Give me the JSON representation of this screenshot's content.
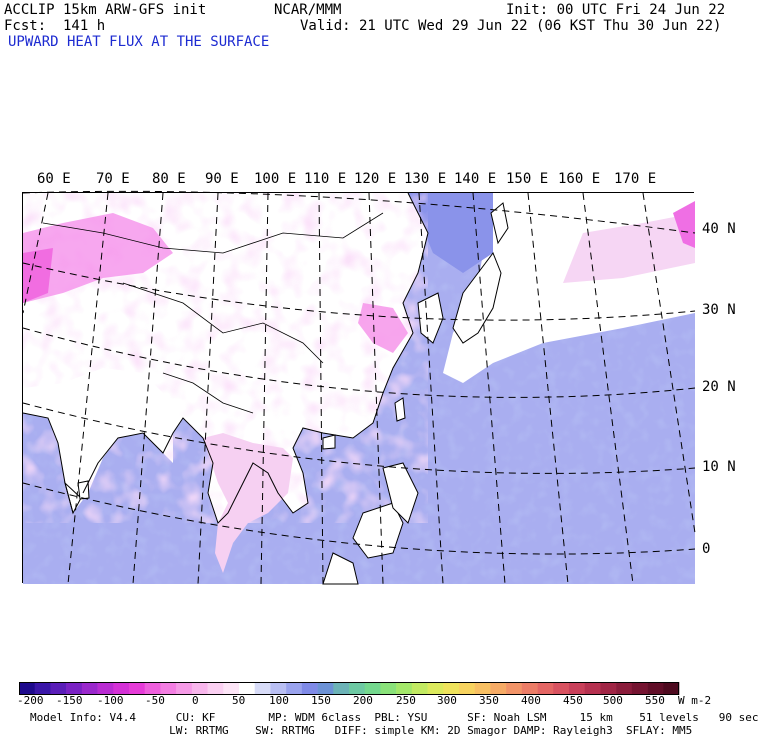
{
  "header": {
    "model_title": "ACCLIP 15km ARW-GFS init",
    "org": "NCAR/MMM",
    "init": "Init: 00 UTC Fri 24 Jun 22",
    "fcst": "Fcst:  141 h",
    "valid": "Valid: 21 UTC Wed 29 Jun 22 (06 KST Thu 30 Jun 22)",
    "field": "UPWARD HEAT FLUX AT THE SURFACE"
  },
  "map": {
    "lon_labels": [
      "60 E",
      "70 E",
      "80 E",
      "90 E",
      "100 E",
      "110 E",
      "120 E",
      "130 E",
      "140 E",
      "150 E",
      "160 E",
      "170 E"
    ],
    "lat_labels": [
      "40 N",
      "30 N",
      "20 N",
      "10 N",
      "0"
    ],
    "colors": {
      "ocean": "#a9aef0",
      "ocean_dark": "#7f88e6",
      "land": "#ffffff",
      "land_pink": "#f7c4f2",
      "hot_pink": "#ef6fe4",
      "coast": "#000000",
      "grid": "#000000"
    }
  },
  "colorbar": {
    "unit": "W m-2",
    "ticks": [
      "-200",
      "-150",
      "-100",
      "-50",
      "0",
      "50",
      "100",
      "150",
      "200",
      "250",
      "300",
      "350",
      "400",
      "450",
      "500",
      "550"
    ],
    "colors": [
      "#1e0a8c",
      "#3a16a8",
      "#5a1eb8",
      "#7a22c4",
      "#9a28cc",
      "#b92cd2",
      "#d431d6",
      "#e63cd8",
      "#ef5fdd",
      "#f37ee2",
      "#f69be7",
      "#f8b6ec",
      "#fbd0f2",
      "#fde5f7",
      "#ffffff",
      "#d8dcf8",
      "#b9bff3",
      "#9aa3ee",
      "#7f8ae7",
      "#6c92d6",
      "#6cb3b7",
      "#6dc9a3",
      "#74d88e",
      "#8ae27a",
      "#a4e86a",
      "#c2ea62",
      "#dcea5d",
      "#efe35c",
      "#f7d35f",
      "#f8c063",
      "#f6ab66",
      "#f29468",
      "#ec7d67",
      "#e46664",
      "#d85260",
      "#c9405a",
      "#b63150",
      "#a02545",
      "#8a1c3b",
      "#751431",
      "#610e28",
      "#4e0a1f"
    ]
  },
  "footer": {
    "line1": "Model Info: V4.4      CU: KF        MP: WDM 6class  PBL: YSU      SF: Noah LSM     15 km    51 levels   90 sec",
    "line2": "                     LW: RRTMG    SW: RRTMG   DIFF: simple KM: 2D Smagor DAMP: Rayleigh3  SFLAY: MM5"
  }
}
